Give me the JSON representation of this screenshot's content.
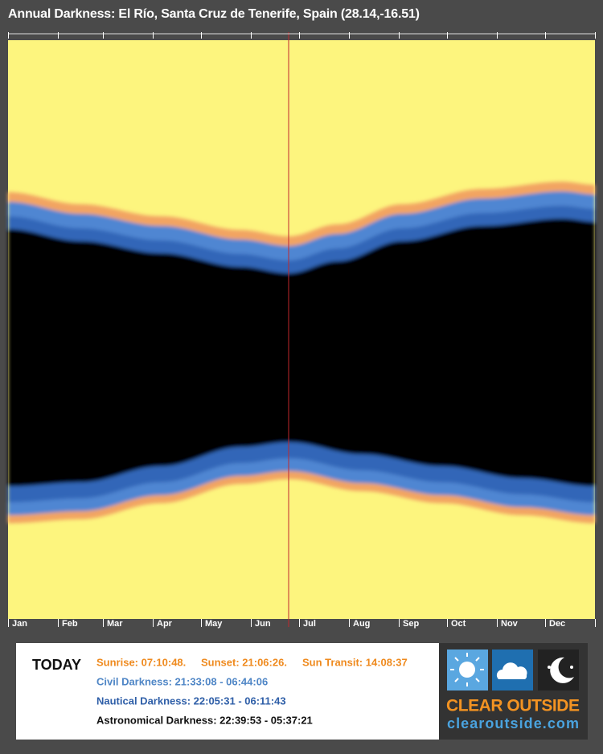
{
  "header": {
    "title": "Annual Darkness: El Río, Santa Cruz de Tenerife, Spain (28.14,-16.51)"
  },
  "months": [
    "Jan",
    "Feb",
    "Mar",
    "Apr",
    "May",
    "Jun",
    "Jul",
    "Aug",
    "Sep",
    "Oct",
    "Nov",
    "Dec"
  ],
  "today": {
    "label": "TODAY",
    "sunrise": "Sunrise: 07:10:48.",
    "sunset": "Sunset: 21:06:26.",
    "transit": "Sun Transit: 14:08:37",
    "civil": "Civil Darkness: 21:33:08 - 06:44:06",
    "nautical": "Nautical Darkness: 22:05:31 - 06:11:43",
    "astronomical": "Astronomical Darkness: 22:39:53 - 05:37:21"
  },
  "logo": {
    "brand": "CLEAR OUTSIDE",
    "url": "clearoutside.com"
  }
}
